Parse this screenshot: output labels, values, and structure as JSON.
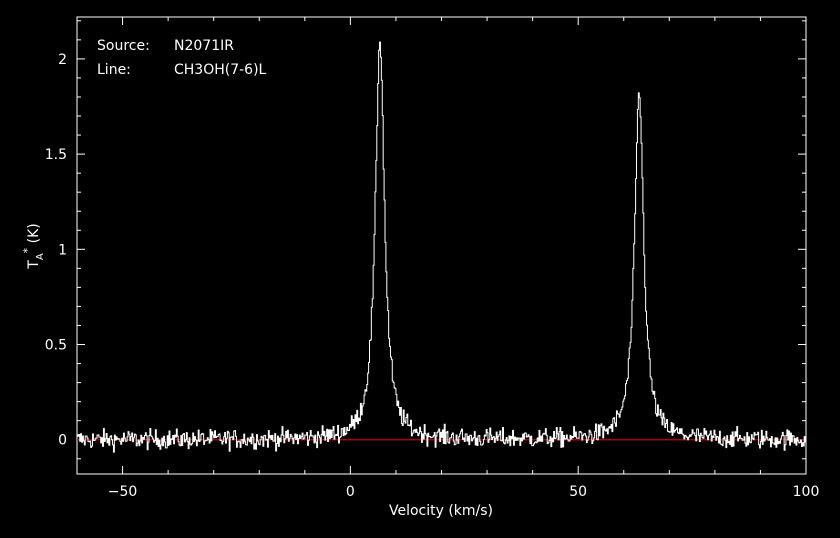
{
  "info": {
    "source_label": "Source:",
    "source_value": "N2071IR",
    "line_label": "Line:",
    "line_value": "CH3OH(7-6)L"
  },
  "chart_data": {
    "type": "line",
    "xlabel": "Velocity (km/s)",
    "ylabel_main": "T",
    "ylabel_sub": "A",
    "ylabel_sup": "*",
    "ylabel_unit": "(K)",
    "xlim": [
      -60,
      100
    ],
    "ylim": [
      -0.18,
      2.22
    ],
    "x_ticks": [
      -50,
      0,
      50,
      100
    ],
    "x_tick_labels": [
      "−50",
      "0",
      "50",
      "100"
    ],
    "y_ticks": [
      0,
      0.5,
      1,
      1.5,
      2
    ],
    "y_tick_labels": [
      "0",
      "0.5",
      "1",
      "1.5",
      "2"
    ],
    "baseline": 0,
    "series": [
      {
        "color": "#ffffff",
        "peaks": [
          {
            "velocity": 6.4,
            "peak": 2.1
          },
          {
            "velocity": 63.3,
            "peak": 1.82
          }
        ],
        "noise_rms": 0.025
      }
    ],
    "baseline_color": "#cc0000",
    "grid": false
  }
}
